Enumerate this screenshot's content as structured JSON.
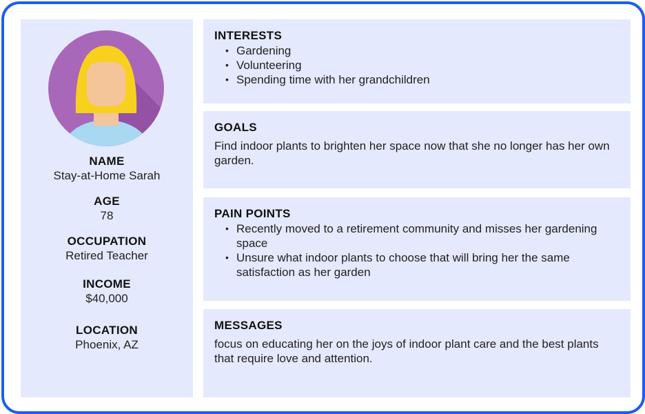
{
  "colors": {
    "frame_border": "#1f5cf0",
    "panel_background": "#e5e9fd",
    "avatar_circle": "#a867b8",
    "avatar_hair": "#f8d01e",
    "avatar_skin": "#f5c59a",
    "avatar_shirt": "#a8d8f2"
  },
  "profile": {
    "avatar_icon": "woman-avatar-icon",
    "name_label": "NAME",
    "name": "Stay-at-Home Sarah",
    "age_label": "AGE",
    "age": "78",
    "occupation_label": "OCCUPATION",
    "occupation": "Retired Teacher",
    "income_label": "INCOME",
    "income": "$40,000",
    "location_label": "LOCATION",
    "location": "Phoenix, AZ"
  },
  "interests": {
    "title": "INTERESTS",
    "items": [
      "Gardening",
      "Volunteering",
      "Spending time with her grandchildren"
    ]
  },
  "goals": {
    "title": "GOALS",
    "text": "Find indoor plants to brighten her space now that she no longer has her own garden."
  },
  "pain_points": {
    "title": "PAIN POINTS",
    "items": [
      "Recently moved to a retirement community and misses her gardening space",
      "Unsure what indoor plants to choose that will bring her the same satisfaction as her garden"
    ]
  },
  "messages": {
    "title": "MESSAGES",
    "text": "focus on educating her on the joys of indoor plant care and the best plants that require love and attention."
  }
}
